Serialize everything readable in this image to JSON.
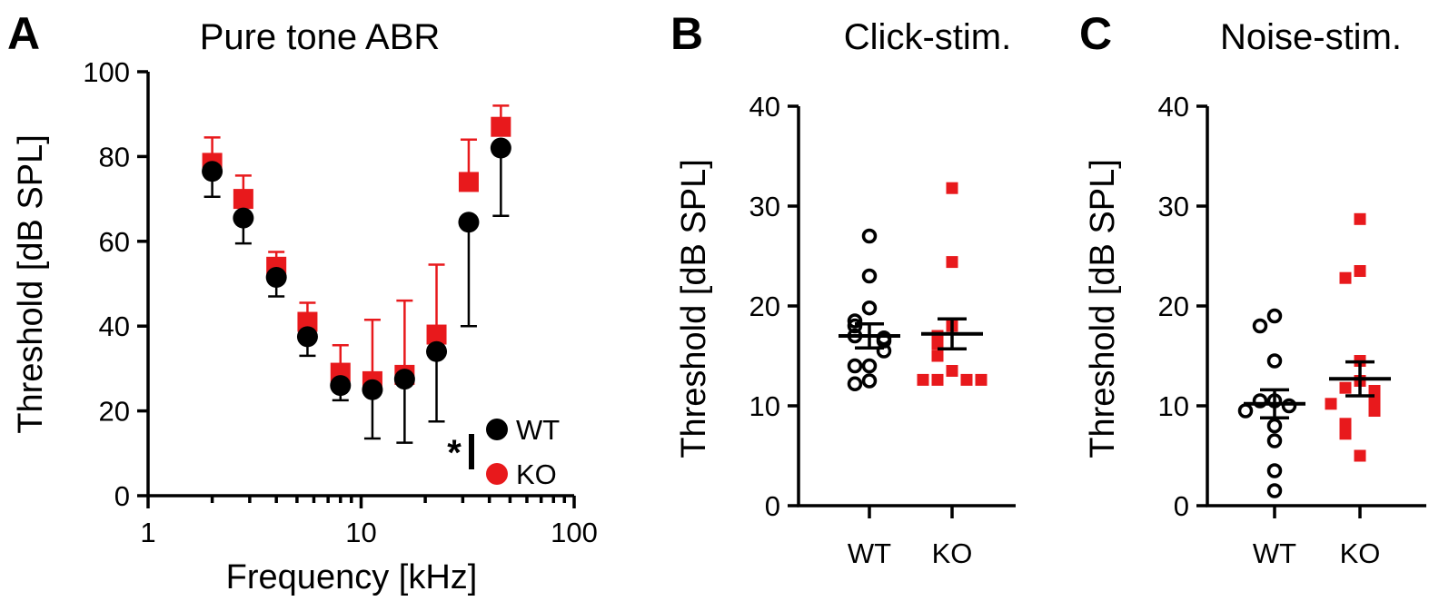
{
  "chart_data": [
    {
      "panel": "A",
      "type": "scatter",
      "title": "Pure tone ABR",
      "xlabel": "Frequency [kHz]",
      "ylabel": "Threshold [dB SPL]",
      "xscale": "log",
      "xlim": [
        1,
        100
      ],
      "ylim": [
        0,
        100
      ],
      "xticks": [
        1,
        10,
        100
      ],
      "xtick_labels": [
        "1",
        "10",
        "100"
      ],
      "yticks": [
        0,
        20,
        40,
        60,
        80,
        100
      ],
      "ytick_labels": [
        "0",
        "20",
        "40",
        "60",
        "80",
        "100"
      ],
      "legend_position": "bottom-right",
      "annotation": "*",
      "series": [
        {
          "name": "WT",
          "color": "#000000",
          "marker": "circle",
          "error_direction": "down",
          "x": [
            2,
            2.8,
            4,
            5.6,
            8,
            11.3,
            16,
            22.6,
            32,
            45.3
          ],
          "y": [
            76.5,
            65.5,
            51.5,
            37.5,
            26,
            25,
            27.5,
            34,
            64.5,
            82
          ],
          "err": [
            6,
            6,
            4.5,
            4.5,
            3.5,
            11.5,
            15,
            16.5,
            24.5,
            16
          ]
        },
        {
          "name": "KO",
          "color": "#e8191c",
          "marker": "square",
          "error_direction": "up",
          "x": [
            2,
            2.8,
            4,
            5.6,
            8,
            11.3,
            16,
            22.6,
            32,
            45.3
          ],
          "y": [
            78.5,
            70,
            54,
            41,
            29,
            27,
            28.5,
            38,
            74,
            87
          ],
          "err": [
            6,
            5.5,
            3.5,
            4.5,
            6.5,
            14.5,
            17.5,
            16.5,
            10,
            5
          ]
        }
      ]
    },
    {
      "panel": "B",
      "type": "scatter",
      "title": "Click-stim.",
      "ylabel": "Threshold [dB SPL]",
      "categories": [
        "WT",
        "KO"
      ],
      "ylim": [
        0,
        40
      ],
      "yticks": [
        0,
        10,
        20,
        30,
        40
      ],
      "ytick_labels": [
        "0",
        "10",
        "20",
        "30",
        "40"
      ],
      "series": [
        {
          "name": "WT",
          "color": "#000000",
          "marker": "open-circle",
          "mean": 17,
          "sem": 1.2,
          "values": [
            27,
            23,
            19.8,
            18.5,
            18,
            17,
            16.8,
            16.5,
            15.5,
            14,
            14,
            12.5,
            12.2
          ]
        },
        {
          "name": "KO",
          "color": "#e8191c",
          "marker": "square",
          "mean": 17.2,
          "sem": 1.5,
          "values": [
            31.8,
            24.4,
            18,
            17,
            16.2,
            15,
            13.5,
            12.6,
            12.6,
            12.6,
            12.6
          ]
        }
      ]
    },
    {
      "panel": "C",
      "type": "scatter",
      "title": "Noise-stim.",
      "ylabel": "Threshold [dB SPL]",
      "categories": [
        "WT",
        "KO"
      ],
      "ylim": [
        0,
        40
      ],
      "yticks": [
        0,
        10,
        20,
        30,
        40
      ],
      "ytick_labels": [
        "0",
        "10",
        "20",
        "30",
        "40"
      ],
      "series": [
        {
          "name": "WT",
          "color": "#000000",
          "marker": "open-circle",
          "mean": 10.2,
          "sem": 1.4,
          "values": [
            19,
            18,
            14.5,
            10.5,
            10.5,
            10,
            9.5,
            8,
            6.5,
            3.5,
            1.5
          ]
        },
        {
          "name": "KO",
          "color": "#e8191c",
          "marker": "square",
          "mean": 12.7,
          "sem": 1.7,
          "values": [
            28.7,
            23.5,
            22.8,
            14.5,
            12.5,
            11.8,
            11.5,
            11,
            10.2,
            10.2,
            9.5,
            8.2,
            7.2,
            5
          ]
        }
      ]
    }
  ]
}
